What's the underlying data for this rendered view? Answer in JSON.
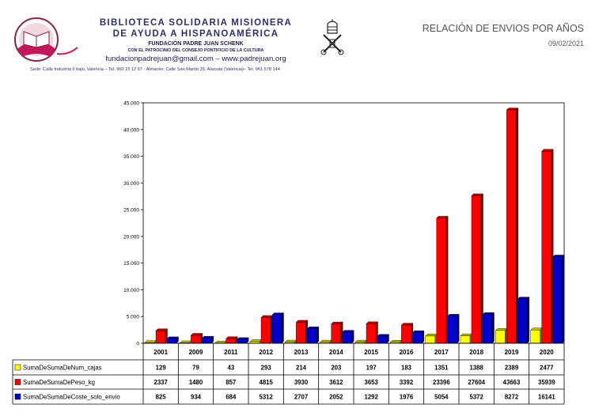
{
  "header": {
    "org_line1": "BIBLIOTECA SOLIDARIA MISIONERA",
    "org_line2": "DE AYUDA A HISPANOAMÉRICA",
    "foundation": "FUNDACIÓN PADRE JUAN SCHENK",
    "patronage": "CON EL PATROCINIO DEL CONSEJO PONTIFICIO DE LA CULTURA",
    "contact": "fundacionpadrejuan@gmail.com – www.padrejuan.org",
    "address": "Sede: Calle Industria 6 bajo, Valencia – Tel. 960 15 12 67 · Almacén: Calle San Martín 26, Alacuás (Valencia)– Tel. 961 578 144"
  },
  "report": {
    "title": "RELACIÓN DE ENVIOS POR AÑOS",
    "date": "09/02/2021"
  },
  "colors": {
    "org_text": "#2c2f6e",
    "series_cajas": "#ffff00",
    "series_peso": "#ff0000",
    "series_coste": "#0000cc"
  },
  "icons": [
    "hands-book-logo",
    "papal-crest-icon"
  ],
  "chart_data": {
    "type": "bar",
    "categories": [
      "2001",
      "2009",
      "2011",
      "2012",
      "2013",
      "2014",
      "2015",
      "2016",
      "2017",
      "2018",
      "2019",
      "2020"
    ],
    "series": [
      {
        "name": "SumaDeSumaDeNum_cajas",
        "values": [
          129,
          79,
          43,
          293,
          214,
          203,
          197,
          183,
          1351,
          1388,
          2389,
          2477
        ]
      },
      {
        "name": "SumaDeSumaDePeso_kg",
        "values": [
          2337,
          1480,
          857,
          4815,
          3930,
          3612,
          3653,
          3392,
          23396,
          27604,
          43663,
          35939
        ]
      },
      {
        "name": "SumaDeSumaDeCoste_solo_envio",
        "values": [
          825,
          934,
          684,
          5312,
          2707,
          2052,
          1292,
          1976,
          5054,
          5372,
          8272,
          16141
        ]
      }
    ],
    "yticks": [
      "0",
      "5000",
      "10000",
      "15000",
      "20000",
      "25000",
      "30000",
      "35000",
      "40000",
      "45000"
    ],
    "ylim": [
      0,
      45000
    ],
    "grid": false,
    "legend": "data table below chart",
    "style": "3d-bars"
  }
}
